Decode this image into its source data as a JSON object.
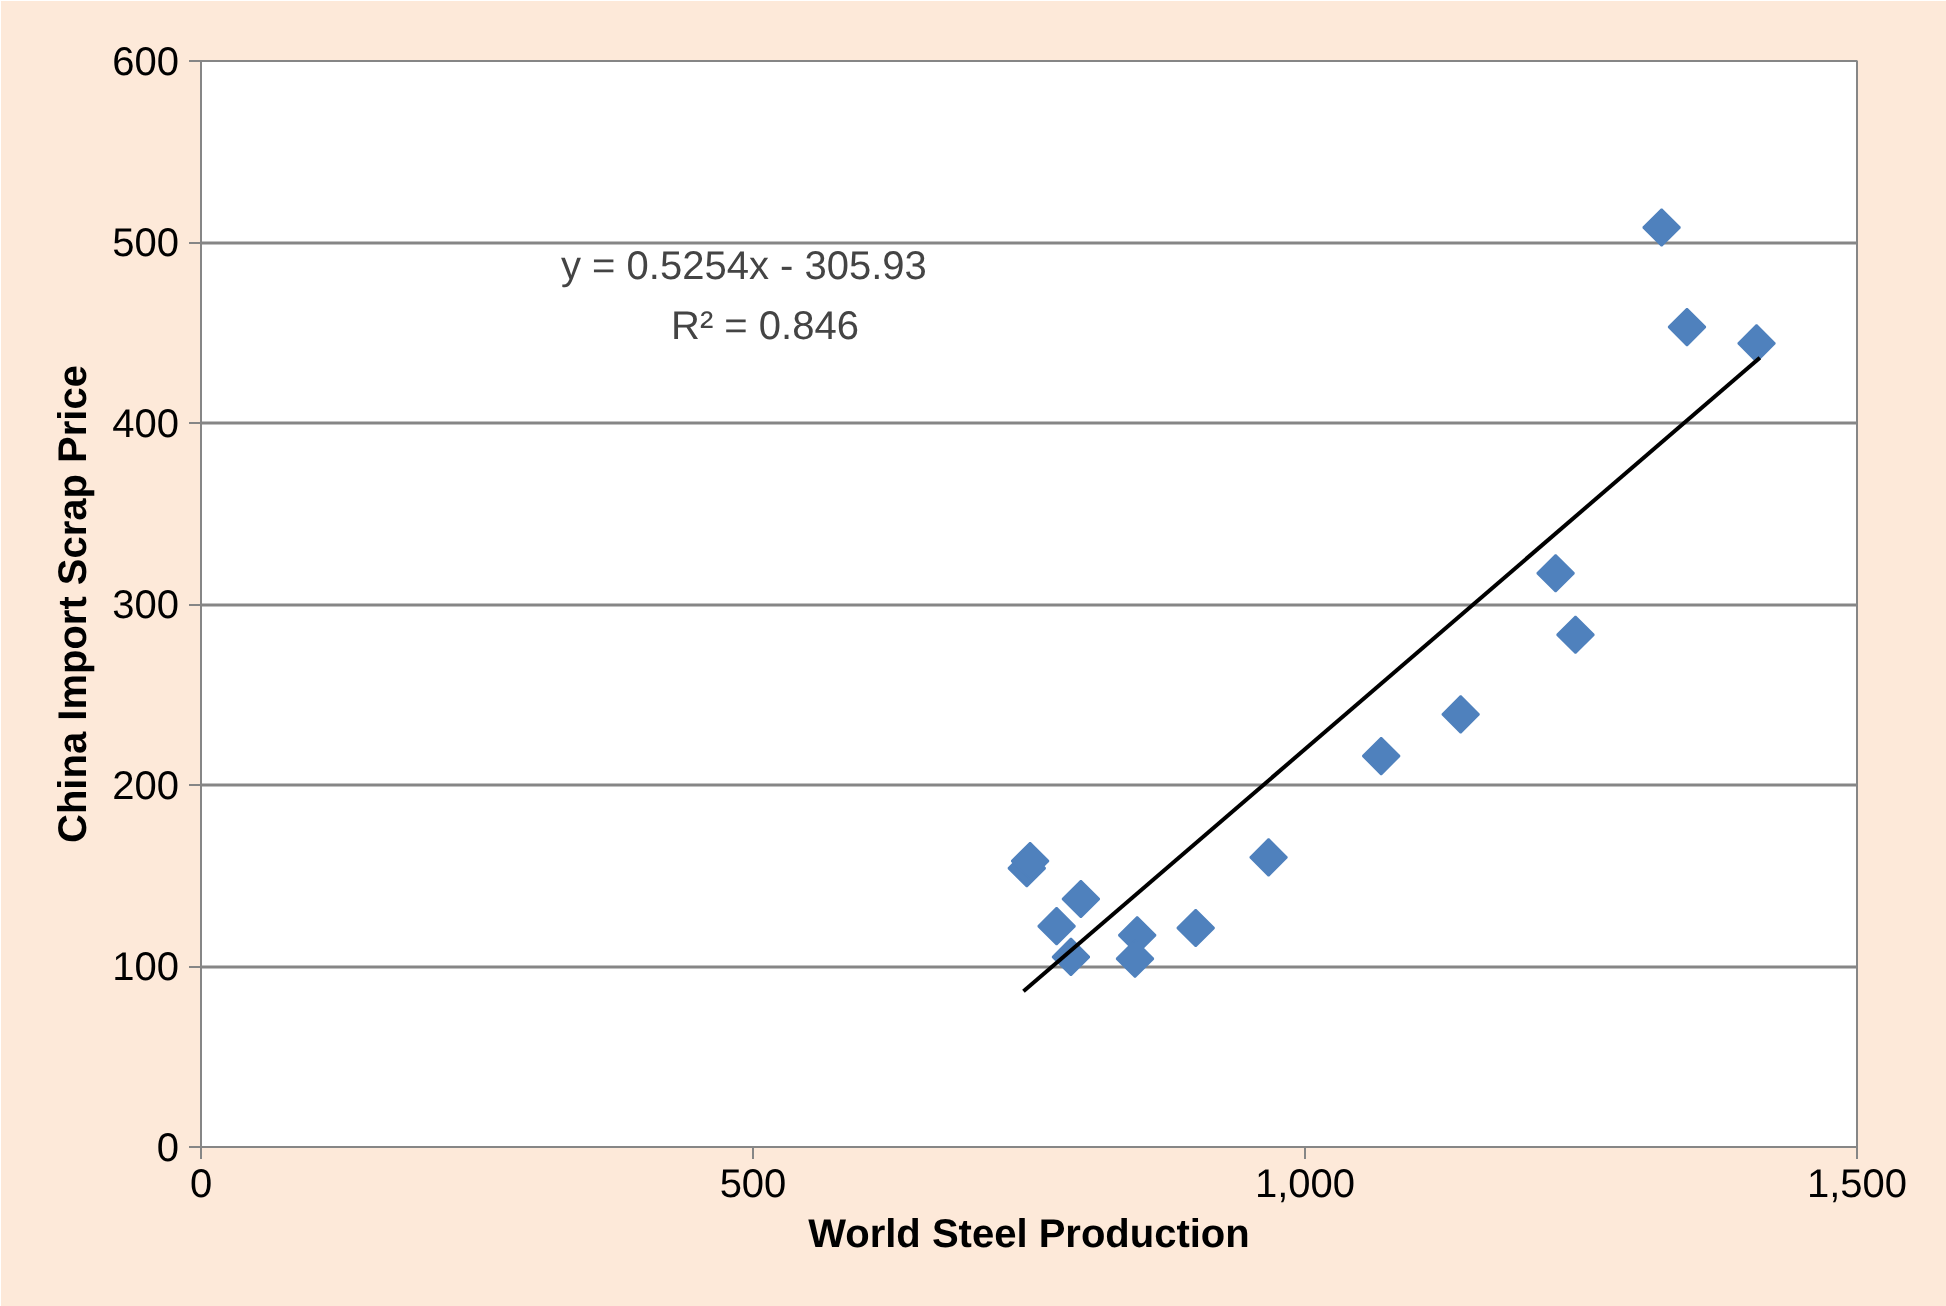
{
  "chart_data": {
    "type": "scatter",
    "xlabel": "World Steel Production",
    "ylabel": "China Import Scrap Price",
    "xlim": [
      0,
      1500
    ],
    "xticks": [
      0,
      500,
      {
        "value": 1000,
        "label": "1,000"
      },
      {
        "value": 1500,
        "label": "1,500"
      }
    ],
    "ylim": [
      0,
      600
    ],
    "yticks": [
      0,
      100,
      200,
      300,
      400,
      500,
      600
    ],
    "grid": "y",
    "marker": "diamond",
    "series": [
      {
        "color": "#4f81bd",
        "x": [
          748,
          751,
          797,
          775,
          788,
          848,
          846,
          901,
          967,
          1069,
          1141,
          1227,
          1245,
          1323,
          1346,
          1409
        ],
        "values": [
          154,
          158,
          137,
          122,
          105,
          117,
          104,
          121,
          160,
          216,
          239,
          317,
          283,
          508,
          453,
          444
        ]
      },
      {
        "type": "line",
        "color": "#000000",
        "x": [
          745,
          1412
        ],
        "values": [
          86,
          436
        ],
        "marker": "none"
      }
    ],
    "annotations": [
      "y = 0.5254x - 305.93",
      "R² = 0.846"
    ]
  }
}
